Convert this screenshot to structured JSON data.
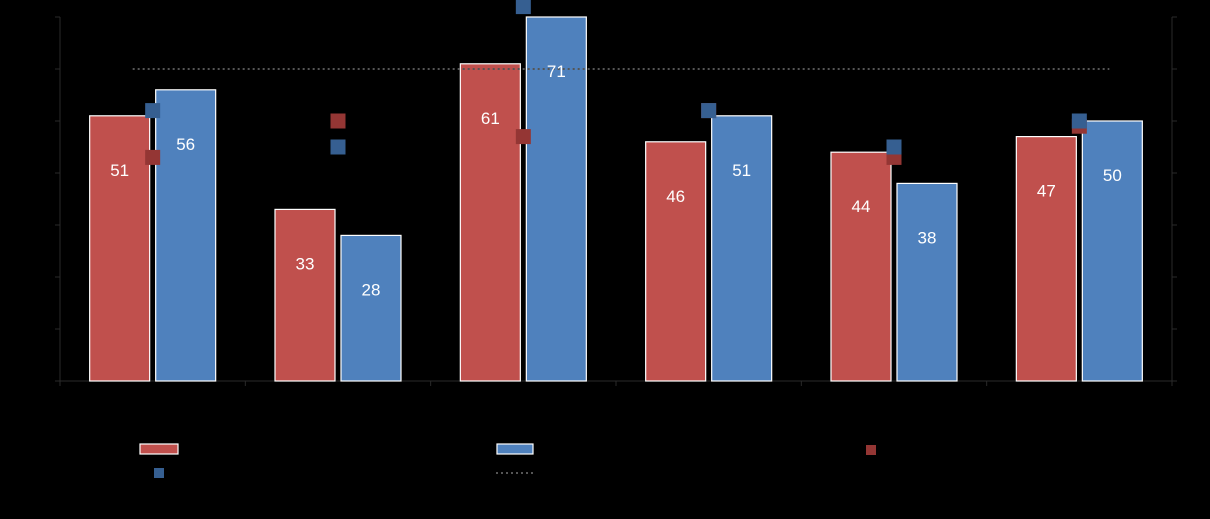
{
  "chart_data": {
    "type": "bar",
    "categories": [
      "",
      "",
      "",
      "",
      "",
      ""
    ],
    "series": [
      {
        "values": [
          51,
          33,
          61,
          46,
          44,
          47
        ],
        "color": "#C0504D"
      },
      {
        "values": [
          56,
          28,
          71,
          51,
          38,
          50
        ],
        "color": "#4F81BD"
      }
    ],
    "markers": [
      {
        "values": [
          43,
          50,
          47,
          52,
          43,
          49
        ],
        "color": "#943634"
      },
      {
        "values": [
          52,
          45,
          72,
          52,
          45,
          50
        ],
        "color": "#365F91"
      }
    ],
    "reference_line": {
      "value": 60,
      "style": "dotted",
      "color": "#555555"
    },
    "data_labels": [
      "51",
      "56",
      "33",
      "28",
      "61",
      "71",
      "46",
      "51",
      "44",
      "38",
      "47",
      "50"
    ],
    "ylim": [
      0,
      70
    ],
    "ytick_count": 8,
    "grid": false,
    "legend_position": "bottom",
    "background": "#000000",
    "label_color": "#FFFFFF"
  }
}
